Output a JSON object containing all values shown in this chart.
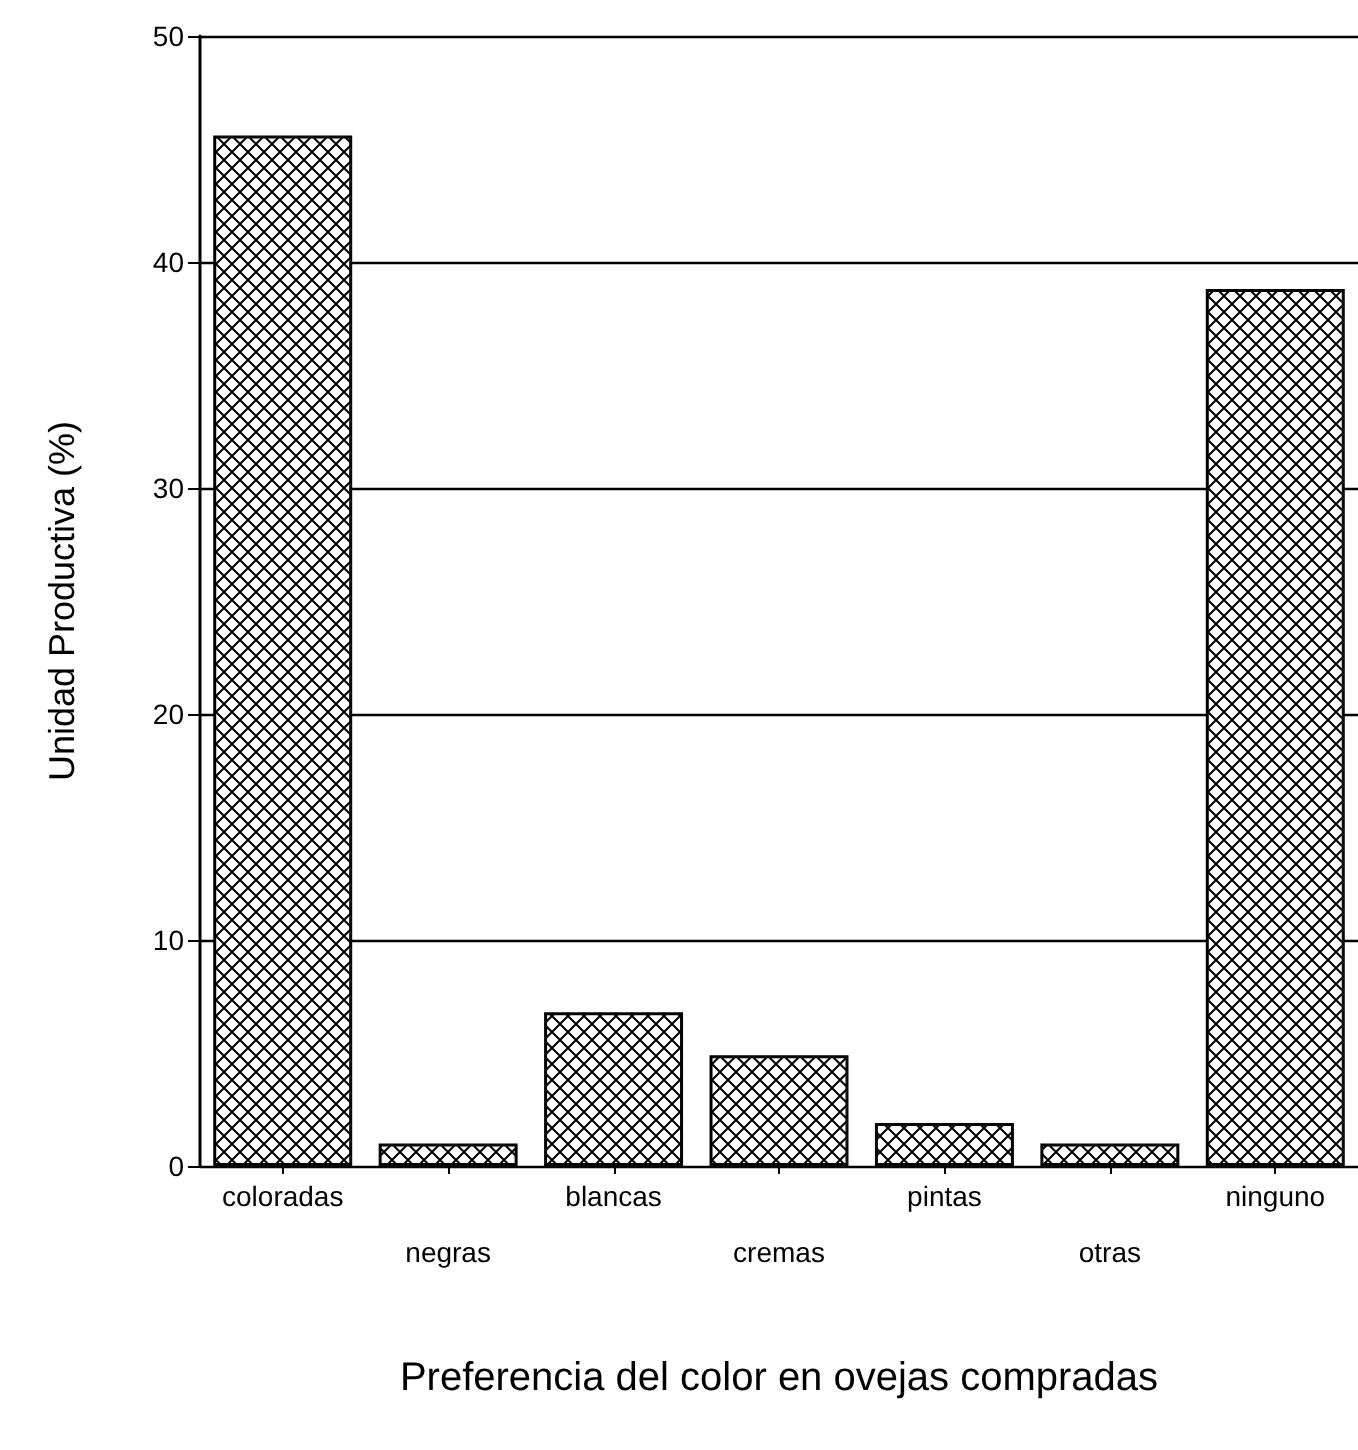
{
  "chart_data": {
    "type": "bar",
    "xlabel": "Preferencia del color en ovejas compradas",
    "ylabel": "Unidad Productiva (%)",
    "categories": [
      "coloradas",
      "negras",
      "blancas",
      "cremas",
      "pintas",
      "otras",
      "ninguno"
    ],
    "values": [
      45.6,
      1.0,
      6.8,
      4.9,
      1.9,
      1.0,
      38.8
    ],
    "color": "#000000",
    "ylim": [
      0,
      50
    ],
    "yticks": [
      0,
      10,
      20,
      30,
      40,
      50
    ],
    "grid": "y"
  }
}
